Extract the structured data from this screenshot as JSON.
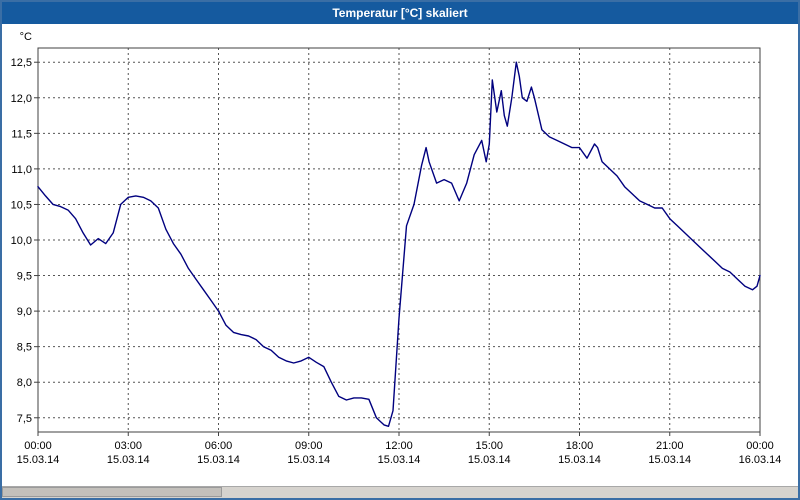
{
  "window": {
    "title": "Temperatur [°C] skaliert"
  },
  "colors": {
    "titlebar_bg": "#155a9f",
    "titlebar_text": "#ffffff",
    "window_border": "#3a6ea5",
    "plot_border": "#404040",
    "grid": "#555555",
    "line": "#00007f",
    "label_text": "#000000",
    "scrollbar_bg": "#d6d3ce"
  },
  "chart_data": {
    "type": "line",
    "title": "Temperatur [°C] skaliert",
    "grid": "dashed",
    "legend": "none",
    "line_color": "#00007f",
    "xlabel": "",
    "ylabel": "°C",
    "x_hours_range": [
      0,
      24
    ],
    "ylim": [
      7.3,
      12.7
    ],
    "y_axis": {
      "unit": "°C",
      "ticks": [
        {
          "value": 7.5,
          "label": "7,5"
        },
        {
          "value": 8.0,
          "label": "8,0"
        },
        {
          "value": 8.5,
          "label": "8,5"
        },
        {
          "value": 9.0,
          "label": "9,0"
        },
        {
          "value": 9.5,
          "label": "9,5"
        },
        {
          "value": 10.0,
          "label": "10,0"
        },
        {
          "value": 10.5,
          "label": "10,5"
        },
        {
          "value": 11.0,
          "label": "11,0"
        },
        {
          "value": 11.5,
          "label": "11,5"
        },
        {
          "value": 12.0,
          "label": "12,0"
        },
        {
          "value": 12.5,
          "label": "12,5"
        }
      ]
    },
    "x_axis": {
      "ticks": [
        {
          "hour": 0,
          "time": "00:00",
          "date": "15.03.14"
        },
        {
          "hour": 3,
          "time": "03:00",
          "date": "15.03.14"
        },
        {
          "hour": 6,
          "time": "06:00",
          "date": "15.03.14"
        },
        {
          "hour": 9,
          "time": "09:00",
          "date": "15.03.14"
        },
        {
          "hour": 12,
          "time": "12:00",
          "date": "15.03.14"
        },
        {
          "hour": 15,
          "time": "15:00",
          "date": "15.03.14"
        },
        {
          "hour": 18,
          "time": "18:00",
          "date": "15.03.14"
        },
        {
          "hour": 21,
          "time": "21:00",
          "date": "15.03.14"
        },
        {
          "hour": 24,
          "time": "00:00",
          "date": "16.03.14"
        }
      ]
    },
    "series": [
      {
        "name": "Temperatur",
        "x": [
          0,
          0.25,
          0.5,
          0.75,
          1,
          1.25,
          1.5,
          1.75,
          2,
          2.25,
          2.5,
          2.75,
          3,
          3.25,
          3.5,
          3.75,
          4,
          4.25,
          4.5,
          4.75,
          5,
          5.25,
          5.5,
          5.75,
          6,
          6.25,
          6.5,
          6.75,
          7,
          7.25,
          7.5,
          7.75,
          8,
          8.25,
          8.5,
          8.75,
          9,
          9.25,
          9.5,
          9.75,
          10,
          10.25,
          10.5,
          10.75,
          11,
          11.25,
          11.5,
          11.65,
          11.8,
          12,
          12.25,
          12.5,
          12.75,
          12.9,
          13,
          13.25,
          13.5,
          13.75,
          14,
          14.25,
          14.5,
          14.75,
          14.9,
          15,
          15.1,
          15.25,
          15.4,
          15.5,
          15.6,
          15.75,
          15.9,
          16,
          16.1,
          16.25,
          16.4,
          16.5,
          16.75,
          17,
          17.25,
          17.5,
          17.75,
          18,
          18.25,
          18.5,
          18.6,
          18.75,
          19,
          19.25,
          19.5,
          19.75,
          20,
          20.25,
          20.5,
          20.75,
          21,
          21.25,
          21.5,
          21.75,
          22,
          22.25,
          22.5,
          22.75,
          23,
          23.25,
          23.5,
          23.75,
          23.9,
          24
        ],
        "y": [
          10.75,
          10.62,
          10.5,
          10.47,
          10.42,
          10.3,
          10.1,
          9.93,
          10.02,
          9.95,
          10.1,
          10.5,
          10.6,
          10.62,
          10.6,
          10.55,
          10.45,
          10.15,
          9.95,
          9.8,
          9.6,
          9.45,
          9.3,
          9.15,
          9.0,
          8.8,
          8.7,
          8.67,
          8.65,
          8.6,
          8.5,
          8.45,
          8.35,
          8.3,
          8.27,
          8.3,
          8.35,
          8.28,
          8.22,
          8.0,
          7.8,
          7.75,
          7.78,
          7.78,
          7.76,
          7.5,
          7.4,
          7.38,
          7.6,
          8.9,
          10.2,
          10.5,
          11.05,
          11.3,
          11.1,
          10.8,
          10.85,
          10.8,
          10.55,
          10.8,
          11.2,
          11.4,
          11.1,
          11.35,
          12.25,
          11.8,
          12.1,
          11.75,
          11.6,
          12.0,
          12.5,
          12.3,
          12.0,
          11.95,
          12.15,
          12.0,
          11.55,
          11.45,
          11.4,
          11.35,
          11.3,
          11.3,
          11.15,
          11.35,
          11.3,
          11.1,
          11.0,
          10.9,
          10.75,
          10.65,
          10.55,
          10.5,
          10.45,
          10.45,
          10.3,
          10.2,
          10.1,
          10.0,
          9.9,
          9.8,
          9.7,
          9.6,
          9.55,
          9.45,
          9.35,
          9.3,
          9.35,
          9.5
        ]
      }
    ]
  }
}
